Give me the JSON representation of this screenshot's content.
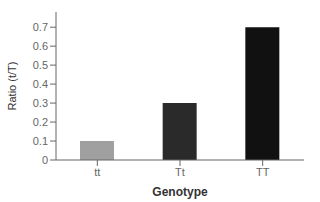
{
  "chart_data": {
    "type": "bar",
    "categories": [
      "tt",
      "Tt",
      "TT"
    ],
    "values": [
      0.1,
      0.3,
      0.7
    ],
    "colors": [
      "#a0a0a0",
      "#2a2a2a",
      "#111111"
    ],
    "xlabel": "Genotype",
    "ylabel": "Ratio (t/T)",
    "ylim": [
      0,
      0.78
    ],
    "yticks": [
      0,
      0.1,
      0.2,
      0.3,
      0.4,
      0.5,
      0.6,
      0.7
    ],
    "grid": false
  }
}
